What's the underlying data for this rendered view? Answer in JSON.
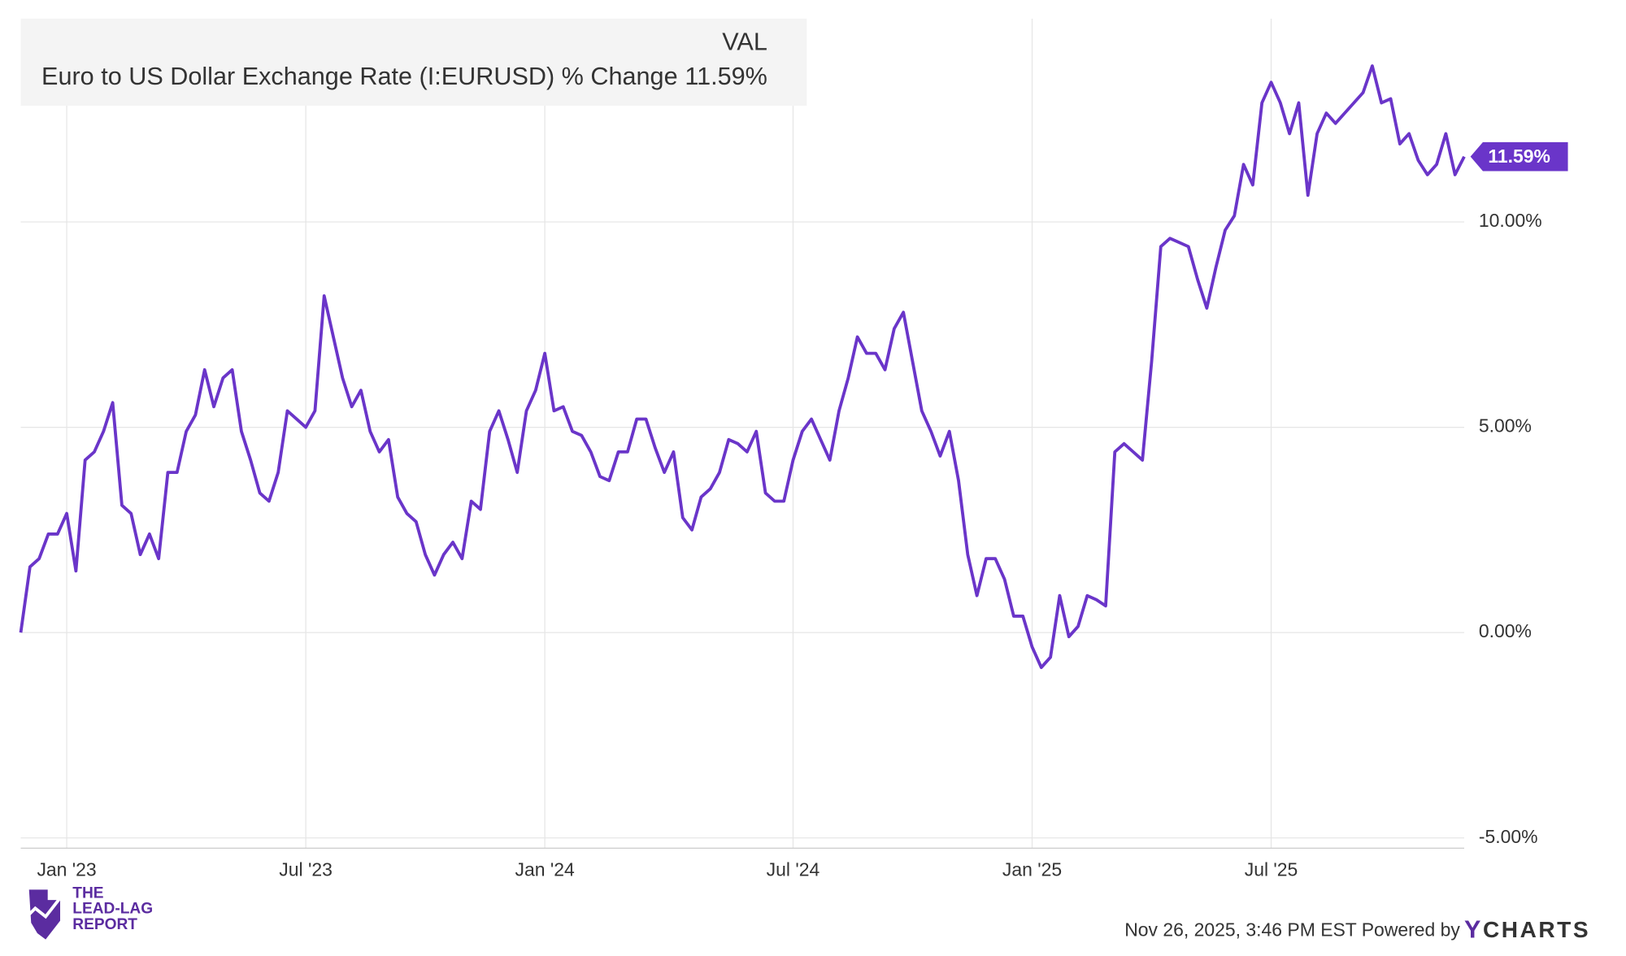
{
  "chart_data": {
    "type": "line",
    "legend_header": "VAL",
    "series": [
      {
        "name": "Euro to US Dollar Exchange Rate (I:EURUSD) % Change",
        "color": "#6a35c9",
        "values": [
          0,
          1.6,
          1.8,
          2.4,
          2.4,
          2.9,
          1.5,
          4.2,
          4.4,
          4.9,
          5.6,
          3.1,
          2.9,
          1.9,
          2.4,
          1.8,
          3.9,
          3.9,
          4.9,
          5.3,
          6.4,
          5.5,
          6.2,
          6.4,
          4.9,
          4.2,
          3.4,
          3.2,
          3.9,
          5.4,
          5.2,
          5.0,
          5.4,
          8.2,
          7.2,
          6.2,
          5.5,
          5.9,
          4.9,
          4.4,
          4.7,
          3.3,
          2.9,
          2.7,
          1.9,
          1.4,
          1.9,
          2.2,
          1.8,
          3.2,
          3.0,
          4.9,
          5.4,
          4.7,
          3.9,
          5.4,
          5.9,
          6.8,
          5.4,
          5.5,
          4.9,
          4.8,
          4.4,
          3.8,
          3.7,
          4.4,
          4.4,
          5.2,
          5.2,
          4.5,
          3.9,
          4.4,
          2.8,
          2.5,
          3.3,
          3.5,
          3.9,
          4.7,
          4.6,
          4.4,
          4.9,
          3.4,
          3.2,
          3.2,
          4.2,
          4.9,
          5.2,
          4.7,
          4.2,
          5.4,
          6.2,
          7.2,
          6.8,
          6.8,
          6.4,
          7.4,
          7.8,
          6.6,
          5.4,
          4.9,
          4.3,
          4.9,
          3.7,
          1.9,
          0.9,
          1.8,
          1.8,
          1.3,
          0.4,
          0.4,
          -0.35,
          -0.85,
          -0.6,
          0.9,
          -0.1,
          0.15,
          0.9,
          0.8,
          0.65,
          4.4,
          4.6,
          4.4,
          4.2,
          6.6,
          9.4,
          9.6,
          9.5,
          9.4,
          8.6,
          7.9,
          8.9,
          9.8,
          10.15,
          11.4,
          10.9,
          12.9,
          13.4,
          12.9,
          12.15,
          12.9,
          10.65,
          12.15,
          12.65,
          12.4,
          12.65,
          12.9,
          13.15,
          13.8,
          12.9,
          13.0,
          11.9,
          12.15,
          11.5,
          11.15,
          11.4,
          12.15,
          11.15,
          11.59
        ]
      }
    ],
    "categories": [
      null,
      null,
      null,
      null,
      null,
      "Jan '23",
      null,
      null,
      null,
      null,
      null,
      null,
      null,
      null,
      null,
      null,
      null,
      null,
      null,
      null,
      null,
      null,
      null,
      null,
      null,
      null,
      null,
      null,
      null,
      null,
      null,
      "Jul '23",
      null,
      null,
      null,
      null,
      null,
      null,
      null,
      null,
      null,
      null,
      null,
      null,
      null,
      null,
      null,
      null,
      null,
      null,
      null,
      null,
      null,
      null,
      null,
      null,
      null,
      "Jan '24",
      null,
      null,
      null,
      null,
      null,
      null,
      null,
      null,
      null,
      null,
      null,
      null,
      null,
      null,
      null,
      null,
      null,
      null,
      null,
      null,
      null,
      null,
      null,
      null,
      null,
      null,
      "Jul '24",
      null,
      null,
      null,
      null,
      null,
      null,
      null,
      null,
      null,
      null,
      null,
      null,
      null,
      null,
      null,
      null,
      null,
      null,
      null,
      null,
      null,
      null,
      null,
      null,
      null,
      "Jan '25",
      null,
      null,
      null,
      null,
      null,
      null,
      null,
      null,
      null,
      null,
      null,
      null,
      null,
      null,
      null,
      null,
      null,
      null,
      null,
      null,
      null,
      null,
      null,
      null,
      null,
      "Jul '25",
      null,
      null,
      null,
      null,
      null,
      null,
      null,
      null,
      null,
      null,
      null,
      null,
      null,
      null,
      null,
      null,
      null,
      null,
      null,
      null,
      null
    ],
    "end_label": {
      "value": 11.59,
      "label": "11.59%"
    },
    "ylim": [
      -5.25,
      14.95
    ],
    "yticks": [
      {
        "value": -5,
        "label": "-5.00%"
      },
      {
        "value": 0,
        "label": "0.00%"
      },
      {
        "value": 5,
        "label": "5.00%"
      },
      {
        "value": 10,
        "label": "10.00%"
      }
    ],
    "grid": true
  },
  "logo": {
    "lines": [
      "THE",
      "LEAD-LAG",
      "REPORT"
    ]
  },
  "footer": {
    "text": "Nov 26, 2025, 3:46 PM EST Powered by",
    "brand_initial": "Y",
    "brand_rest": "CHARTS"
  }
}
